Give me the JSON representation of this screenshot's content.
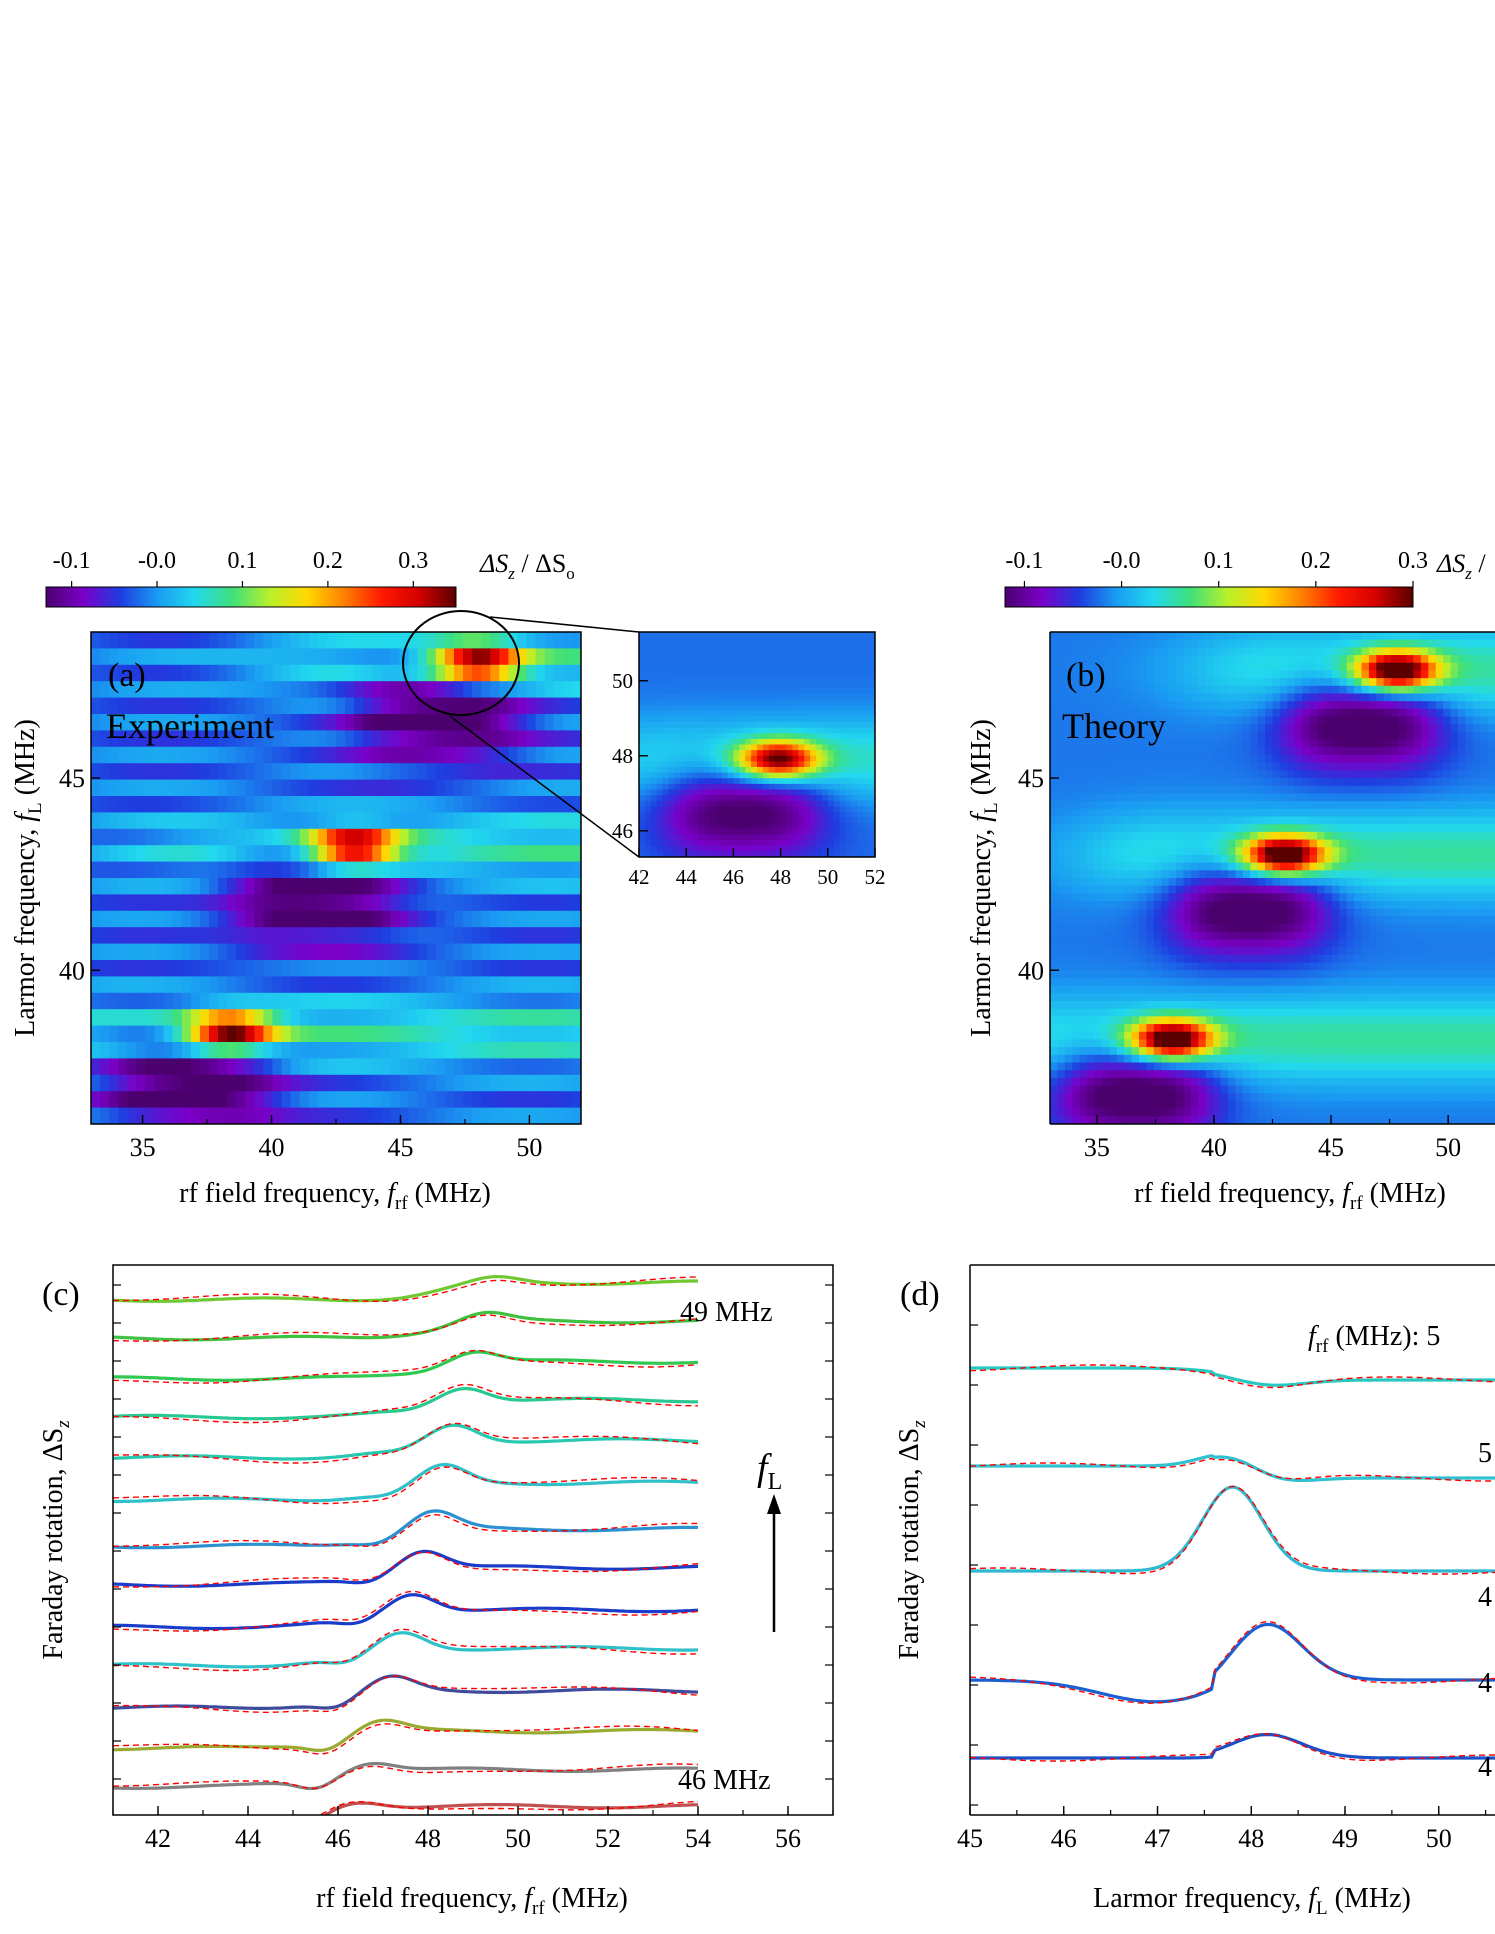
{
  "colors": {
    "colormap": [
      "#4b006e",
      "#7a00c8",
      "#1f3ce0",
      "#1a9cf2",
      "#22d8ee",
      "#3fe07a",
      "#b8f02a",
      "#ffd800",
      "#ff8000",
      "#ff1a00",
      "#d40000",
      "#5a0000"
    ]
  },
  "chart_data": [
    {
      "id": "a",
      "type": "heatmap",
      "panel_label": "(a)",
      "annotation": "Experiment",
      "xlabel_main": "rf field frequency, ",
      "xlabel_sym": "f",
      "xlabel_sub": "rf",
      "xlabel_unit": " (MHz)",
      "ylabel_main": "Larmor frequency, ",
      "ylabel_sym": "f",
      "ylabel_sub": "L",
      "ylabel_unit": " (MHz)",
      "xlim": [
        33,
        52
      ],
      "ylim": [
        36,
        48.8
      ],
      "xticks": [
        "35",
        "40",
        "45",
        "50"
      ],
      "yticks": [
        "40",
        "45"
      ],
      "colorbar": {
        "ticks": [
          "-0.1",
          "-0.0",
          "0.1",
          "0.2",
          "0.3"
        ],
        "range": [
          -0.13,
          0.35
        ],
        "label_main": "ΔS",
        "label_sub_z": "z",
        "label_div": " / ΔS",
        "label_sub_o": "o"
      },
      "resonances": [
        38.4,
        43.2,
        48.0
      ],
      "inset": {
        "xlim": [
          42,
          52
        ],
        "ylim": [
          45.3,
          51.3
        ],
        "xticks": [
          "42",
          "44",
          "46",
          "48",
          "50",
          "52"
        ],
        "yticks": [
          "46",
          "48",
          "50"
        ]
      }
    },
    {
      "id": "b",
      "type": "heatmap",
      "panel_label": "(b)",
      "annotation": "Theory",
      "xlabel_main": "rf field frequency, ",
      "xlabel_sym": "f",
      "xlabel_sub": "rf",
      "xlabel_unit": " (MHz)",
      "ylabel_main": "Larmor frequency, ",
      "ylabel_sym": "f",
      "ylabel_sub": "L",
      "ylabel_unit": " (MHz)",
      "xlim": [
        33,
        52
      ],
      "ylim": [
        36,
        48.8
      ],
      "xticks": [
        "35",
        "40",
        "45",
        "50"
      ],
      "yticks": [
        "40",
        "45"
      ],
      "colorbar": {
        "ticks": [
          "-0.1",
          "-0.0",
          "0.1",
          "0.2",
          "0.3"
        ],
        "range": [
          -0.12,
          0.3
        ],
        "label_main": "ΔS",
        "label_sub_z": "z",
        "label_div": " /",
        "label_sub_o": ""
      },
      "resonances": [
        38.2,
        43.0,
        47.8
      ]
    },
    {
      "id": "c",
      "type": "line",
      "panel_label": "(c)",
      "xlabel_main": "rf field frequency, ",
      "xlabel_sym": "f",
      "xlabel_sub": "rf",
      "xlabel_unit": " (MHz)",
      "ylabel_main": "Faraday rotation, ΔS",
      "ylabel_sub": "z",
      "xlim": [
        41,
        57
      ],
      "xticks": [
        "42",
        "44",
        "46",
        "48",
        "50",
        "52",
        "54",
        "56"
      ],
      "top_label": "49 MHz",
      "bottom_label": "46 MHz",
      "arrow_sym": "f",
      "arrow_sub": "L",
      "offsets": [
        0.3,
        1.3,
        2.35,
        3.35,
        4.4,
        5.5,
        6.7,
        7.7,
        8.8,
        9.8,
        10.9,
        11.95,
        12.95,
        13.9
      ],
      "colors": [
        "#c05050",
        "#808080",
        "#9aaa30",
        "#404a9a",
        "#30c0c8",
        "#1a3cc8",
        "#1a3cc8",
        "#2a90d0",
        "#30c0c8",
        "#28c8b0",
        "#28c890",
        "#30c850",
        "#40c040",
        "#70c830"
      ],
      "fit_color": "#ff0000"
    },
    {
      "id": "d",
      "type": "line",
      "panel_label": "(d)",
      "xlabel_main": "Larmor frequency, ",
      "xlabel_sym": "f",
      "xlabel_sub": "L",
      "xlabel_unit": " (MHz)",
      "ylabel_main": "Faraday rotation, ΔS",
      "ylabel_sub": "z",
      "xlim": [
        45,
        50.6
      ],
      "xticks": [
        "45",
        "46",
        "47",
        "48",
        "49",
        "50"
      ],
      "legend_prefix_sym": "f",
      "legend_prefix_sub": "rf",
      "legend_prefix_unit": " (MHz): 5",
      "right_labels": [
        "5",
        "4",
        "4",
        "4"
      ],
      "colors": [
        "#28c8c0",
        "#30c0d0",
        "#30b8d0",
        "#1a60d0",
        "#1a50c8"
      ],
      "fit_color": "#ff0000"
    }
  ]
}
